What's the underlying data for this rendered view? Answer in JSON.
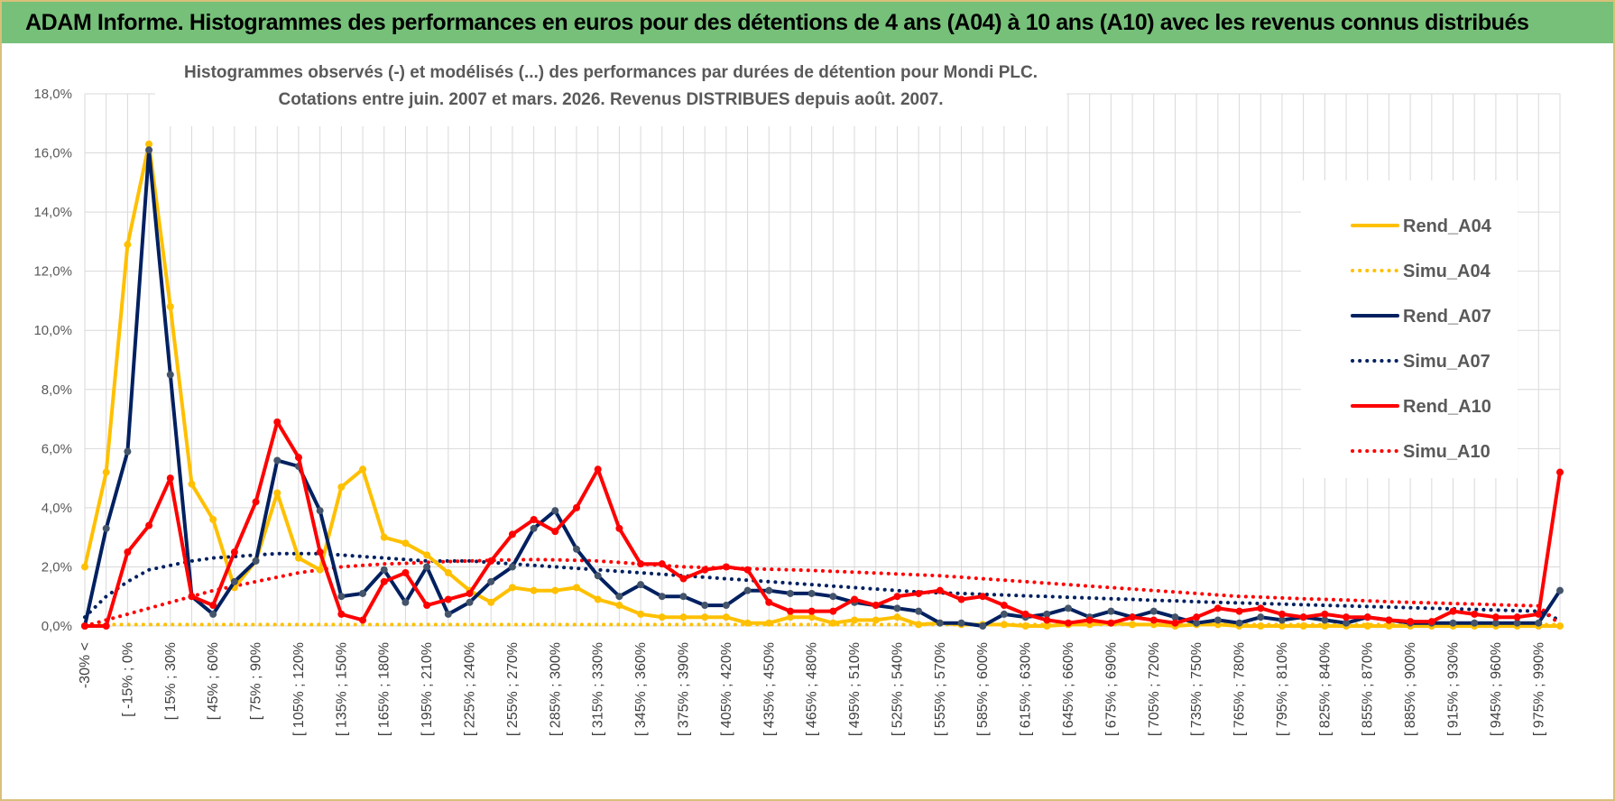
{
  "banner": {
    "title": "ADAM Informe. Histogrammes des performances en euros pour des détentions de 4 ans (A04) à 10 ans (A10) avec les revenus connus distribués"
  },
  "colors": {
    "a04": "#FFC000",
    "a07": "#002060",
    "a10": "#FF0000",
    "a07_marker": "#44546A",
    "grid": "#D9D9D9",
    "banner": "#76C07A"
  },
  "chart_data": {
    "type": "line",
    "title": "Histogrammes observés (-) et modélisés (...) des performances par durées de détention pour Mondi PLC.",
    "subtitle": "Cotations entre juin. 2007 et mars. 2026. Revenus DISTRIBUES depuis août. 2007.",
    "xlabel": "",
    "ylabel": "",
    "ylim": [
      0,
      18
    ],
    "yticks": [
      "0,0%",
      "2,0%",
      "4,0%",
      "6,0%",
      "8,0%",
      "10,0%",
      "12,0%",
      "14,0%",
      "16,0%",
      "18,0%"
    ],
    "x_labels": [
      "-30% <",
      "[ -15% ; 0%",
      "[ 15% ; 30%",
      "[ 45% ; 60%",
      "[ 75% ; 90%",
      "[ 105% ; 120%",
      "[ 135% ; 150%",
      "[ 165% ; 180%",
      "[ 195% ; 210%",
      "[ 225% ; 240%",
      "[ 255% ; 270%",
      "[ 285% ; 300%",
      "[ 315% ; 330%",
      "[ 345% ; 360%",
      "[ 375% ; 390%",
      "[ 405% ; 420%",
      "[ 435% ; 450%",
      "[ 465% ; 480%",
      "[ 495% ; 510%",
      "[ 525% ; 540%",
      "[ 555% ; 570%",
      "[ 585% ; 600%",
      "[ 615% ; 630%",
      "[ 645% ; 660%",
      "[ 675% ; 690%",
      "[ 705% ; 720%",
      "[ 735% ; 750%",
      "[ 765% ; 780%",
      "[ 795% ; 810%",
      "[ 825% ; 840%",
      "[ 855% ; 870%",
      "[ 885% ; 900%",
      "[ 915% ; 930%",
      "[ 945% ; 960%",
      "[ 975% ; 990%"
    ],
    "x_label_step": 2,
    "n_categories": 70,
    "legend": {
      "position": "right"
    },
    "series": [
      {
        "name": "Rend_A04",
        "style": "solid",
        "color": "#FFC000",
        "marker": true,
        "values": [
          2.0,
          5.2,
          12.9,
          16.3,
          10.8,
          4.8,
          3.6,
          1.3,
          2.2,
          4.5,
          2.3,
          1.9,
          4.7,
          5.3,
          3.0,
          2.8,
          2.4,
          1.8,
          1.2,
          0.8,
          1.3,
          1.2,
          1.2,
          1.3,
          0.9,
          0.7,
          0.4,
          0.3,
          0.3,
          0.3,
          0.3,
          0.1,
          0.1,
          0.3,
          0.3,
          0.1,
          0.2,
          0.2,
          0.3,
          0.05,
          0.1,
          0.05,
          0.05,
          0.05,
          0.0,
          0.0,
          0.05,
          0.05,
          0.1,
          0.05,
          0.05,
          0.0,
          0.05,
          0.05,
          0.0,
          0.0,
          0.0,
          0.0,
          0.0,
          0.0,
          0.0,
          0.0,
          0.0,
          0.0,
          0.0,
          0.0,
          0.0,
          0.0,
          0.0,
          0.0
        ]
      },
      {
        "name": "Simu_A04",
        "style": "dotted",
        "color": "#FFC000",
        "marker": false,
        "values": [
          0.05,
          0.05,
          0.05,
          0.05,
          0.05,
          0.05,
          0.05,
          0.05,
          0.05,
          0.05,
          0.05,
          0.05,
          0.05,
          0.05,
          0.05,
          0.05,
          0.05,
          0.05,
          0.05,
          0.05,
          0.05,
          0.05,
          0.05,
          0.05,
          0.05,
          0.05,
          0.05,
          0.05,
          0.05,
          0.05,
          0.05,
          0.05,
          0.05,
          0.05,
          0.05,
          0.05,
          0.05,
          0.05,
          0.05,
          0.05,
          0.05,
          0.05,
          0.05,
          0.05,
          0.05,
          0.05,
          0.05,
          0.05,
          0.05,
          0.05,
          0.05,
          0.05,
          0.05,
          0.05,
          0.05,
          0.05,
          0.05,
          0.05,
          0.05,
          0.05,
          0.05,
          0.05,
          0.05,
          0.05,
          0.05,
          0.05,
          0.05,
          0.05,
          0.05,
          0.05
        ]
      },
      {
        "name": "Rend_A07",
        "style": "solid",
        "color": "#002060",
        "marker": true,
        "values": [
          0.0,
          3.3,
          5.9,
          16.1,
          8.5,
          1.0,
          0.4,
          1.5,
          2.2,
          5.6,
          5.4,
          3.9,
          1.0,
          1.1,
          1.9,
          0.8,
          2.0,
          0.4,
          0.8,
          1.5,
          2.0,
          3.3,
          3.9,
          2.6,
          1.7,
          1.0,
          1.4,
          1.0,
          1.0,
          0.7,
          0.7,
          1.2,
          1.2,
          1.1,
          1.1,
          1.0,
          0.8,
          0.7,
          0.6,
          0.5,
          0.1,
          0.1,
          0.0,
          0.4,
          0.3,
          0.4,
          0.6,
          0.3,
          0.5,
          0.3,
          0.5,
          0.3,
          0.1,
          0.2,
          0.1,
          0.3,
          0.2,
          0.3,
          0.2,
          0.1,
          0.3,
          0.2,
          0.1,
          0.1,
          0.1,
          0.1,
          0.1,
          0.1,
          0.1,
          1.2
        ]
      },
      {
        "name": "Simu_A07",
        "style": "dotted",
        "color": "#002060",
        "marker": false,
        "values": [
          0.3,
          1.0,
          1.5,
          1.9,
          2.05,
          2.2,
          2.3,
          2.35,
          2.4,
          2.45,
          2.45,
          2.45,
          2.4,
          2.35,
          2.3,
          2.25,
          2.2,
          2.2,
          2.2,
          2.15,
          2.1,
          2.05,
          2.0,
          1.95,
          1.9,
          1.85,
          1.8,
          1.75,
          1.7,
          1.65,
          1.6,
          1.55,
          1.5,
          1.45,
          1.4,
          1.35,
          1.3,
          1.25,
          1.2,
          1.15,
          1.12,
          1.1,
          1.07,
          1.05,
          1.02,
          1.0,
          0.97,
          0.95,
          0.92,
          0.9,
          0.87,
          0.85,
          0.82,
          0.8,
          0.78,
          0.76,
          0.74,
          0.72,
          0.7,
          0.68,
          0.66,
          0.64,
          0.62,
          0.6,
          0.58,
          0.56,
          0.54,
          0.52,
          0.5,
          0.2
        ]
      },
      {
        "name": "Rend_A10",
        "style": "solid",
        "color": "#FF0000",
        "marker": true,
        "values": [
          0.0,
          0.0,
          2.5,
          3.4,
          5.0,
          1.0,
          0.7,
          2.5,
          4.2,
          6.9,
          5.7,
          2.5,
          0.4,
          0.2,
          1.5,
          1.8,
          0.7,
          0.9,
          1.1,
          2.2,
          3.1,
          3.6,
          3.2,
          4.0,
          5.3,
          3.3,
          2.1,
          2.1,
          1.6,
          1.9,
          2.0,
          1.9,
          0.8,
          0.5,
          0.5,
          0.5,
          0.9,
          0.7,
          1.0,
          1.1,
          1.2,
          0.9,
          1.0,
          0.7,
          0.4,
          0.2,
          0.1,
          0.2,
          0.1,
          0.3,
          0.2,
          0.1,
          0.3,
          0.6,
          0.5,
          0.6,
          0.4,
          0.3,
          0.4,
          0.3,
          0.3,
          0.2,
          0.15,
          0.15,
          0.5,
          0.4,
          0.3,
          0.3,
          0.4,
          5.2
        ]
      },
      {
        "name": "Simu_A10",
        "style": "dotted",
        "color": "#FF0000",
        "marker": false,
        "values": [
          0.0,
          0.2,
          0.4,
          0.6,
          0.8,
          1.0,
          1.2,
          1.35,
          1.5,
          1.65,
          1.8,
          1.9,
          2.0,
          2.05,
          2.1,
          2.12,
          2.15,
          2.18,
          2.2,
          2.22,
          2.24,
          2.25,
          2.24,
          2.22,
          2.2,
          2.15,
          2.1,
          2.05,
          2.0,
          1.98,
          1.96,
          1.94,
          1.92,
          1.9,
          1.88,
          1.85,
          1.82,
          1.79,
          1.76,
          1.73,
          1.7,
          1.65,
          1.6,
          1.55,
          1.5,
          1.45,
          1.4,
          1.35,
          1.3,
          1.25,
          1.2,
          1.15,
          1.1,
          1.05,
          1.0,
          0.98,
          0.95,
          0.92,
          0.9,
          0.88,
          0.85,
          0.82,
          0.8,
          0.78,
          0.76,
          0.74,
          0.72,
          0.7,
          0.68,
          0.05
        ]
      }
    ]
  }
}
